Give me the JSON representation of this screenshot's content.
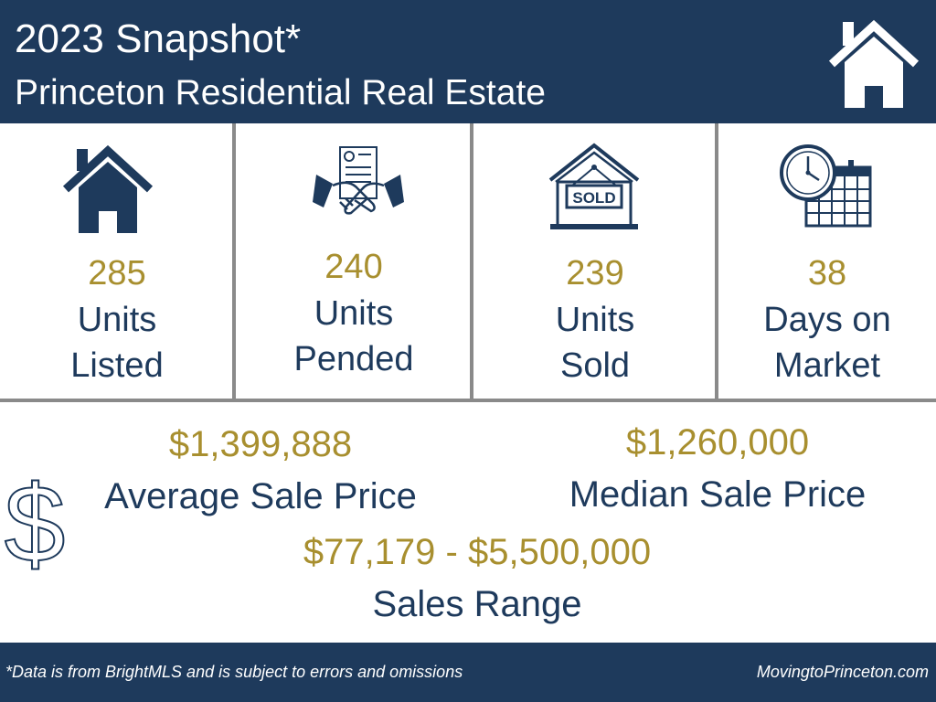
{
  "header": {
    "title": "2023 Snapshot*",
    "subtitle": "Princeton Residential Real Estate",
    "icon": "house-icon"
  },
  "stats": [
    {
      "icon": "house-icon",
      "value": "285",
      "label_line1": "Units",
      "label_line2": "Listed"
    },
    {
      "icon": "handshake-contract-icon",
      "value": "240",
      "label_line1": "Units",
      "label_line2": "Pended"
    },
    {
      "icon": "sold-sign-house-icon",
      "value": "239",
      "label_line1": "Units",
      "label_line2": "Sold",
      "sign_text": "SOLD"
    },
    {
      "icon": "clock-calendar-icon",
      "value": "38",
      "label_line1": "Days on",
      "label_line2": "Market"
    }
  ],
  "prices": {
    "average": {
      "value": "$1,399,888",
      "label": "Average Sale Price"
    },
    "median": {
      "value": "$1,260,000",
      "label": "Median Sale Price"
    },
    "range": {
      "value": "$77,179 - $5,500,000",
      "label": "Sales Range"
    },
    "icon": "dollar-sign-icon"
  },
  "footer": {
    "note": "*Data is from BrightMLS and is subject to errors and omissions",
    "site": "MovingtoPrinceton.com"
  },
  "colors": {
    "navy": "#1e3a5c",
    "gold": "#a88f2f",
    "divider": "#8a8a8a"
  }
}
